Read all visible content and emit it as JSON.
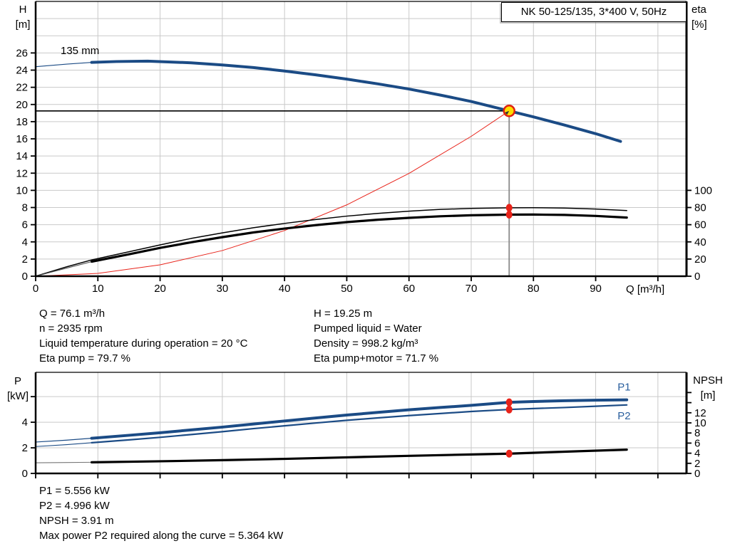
{
  "title_box": {
    "label": "NK 50-125/135, 3*400 V, 50Hz"
  },
  "colors": {
    "curve_blue": "#1b4b85",
    "label_blue": "#2a5f9e",
    "system_red": "#e8231a",
    "dot_red": "#e8231a",
    "op_yellow": "#ffdd00",
    "op_ring_red": "#e02010",
    "grid_gray": "#c9c9c9",
    "duty_line_gray": "#8a8a8a",
    "black": "#000000"
  },
  "info_top": {
    "left": [
      "Q = 76.1 m³/h",
      "n = 2935 rpm",
      "Liquid temperature during operation = 20 °C",
      "Eta pump = 79.7 %"
    ],
    "right": [
      "H = 19.25 m",
      "Pumped liquid = Water",
      "Density = 998.2 kg/m³",
      "Eta pump+motor = 71.7 %"
    ]
  },
  "info_bottom": [
    "P1 = 5.556 kW",
    "P2 = 4.996 kW",
    "NPSH = 3.91 m",
    "Max power P2 required along the curve = 5.364 kW"
  ],
  "chart_data": [
    {
      "type": "line",
      "title": "NK 50-125/135, 3*400 V, 50Hz",
      "curve_label": "135 mm",
      "xlabel": "Q [m³/h]",
      "yleft_title": "H",
      "yleft_unit": "[m]",
      "yright_title": "eta",
      "yright_unit": "[%]",
      "xlim": [
        0,
        104.6
      ],
      "ylim_left": [
        0,
        32
      ],
      "ylim_right": [
        0,
        320
      ],
      "grid_x": [
        10,
        20,
        30,
        40,
        50,
        60,
        70,
        80,
        90,
        100
      ],
      "grid_y_left": [
        2,
        4,
        6,
        8,
        10,
        12,
        14,
        16,
        18,
        20,
        22,
        24,
        26,
        28,
        30
      ],
      "ticks": {
        "x": {
          "values": [
            0,
            10,
            20,
            30,
            40,
            50,
            60,
            70,
            80,
            90,
            100
          ],
          "labels": [
            "0",
            "10",
            "20",
            "30",
            "40",
            "50",
            "60",
            "70",
            "80",
            "90",
            ""
          ]
        },
        "left": {
          "values": [
            0,
            2,
            4,
            6,
            8,
            10,
            12,
            14,
            16,
            18,
            20,
            22,
            24,
            26
          ],
          "labels": [
            "0",
            "2",
            "4",
            "6",
            "8",
            "10",
            "12",
            "14",
            "16",
            "18",
            "20",
            "22",
            "24",
            "26"
          ]
        },
        "right": {
          "values": [
            0,
            20,
            40,
            60,
            80,
            100
          ],
          "labels": [
            "0",
            "20",
            "40",
            "60",
            "80",
            "100"
          ]
        }
      },
      "duty": {
        "q": 76.1,
        "h": 19.25
      },
      "series": [
        {
          "name": "system-curve",
          "axis": "left",
          "color": "#e8231a",
          "width": 1,
          "points": [
            [
              0,
              0
            ],
            [
              10,
              0.33
            ],
            [
              20,
              1.33
            ],
            [
              30,
              2.99
            ],
            [
              40,
              5.32
            ],
            [
              50,
              8.31
            ],
            [
              60,
              11.97
            ],
            [
              70,
              16.29
            ],
            [
              76.1,
              19.25
            ]
          ]
        },
        {
          "name": "eta-pump",
          "axis": "right",
          "color": "#000000",
          "width": 1.5,
          "points": [
            [
              0,
              0
            ],
            [
              5,
              11
            ],
            [
              9,
              19
            ],
            [
              15,
              28.5
            ],
            [
              20,
              36.5
            ],
            [
              25,
              44
            ],
            [
              30,
              50.5
            ],
            [
              35,
              56.5
            ],
            [
              40,
              61.5
            ],
            [
              45,
              66
            ],
            [
              50,
              70
            ],
            [
              55,
              73.2
            ],
            [
              60,
              75.8
            ],
            [
              65,
              77.8
            ],
            [
              70,
              79
            ],
            [
              76.1,
              79.7
            ],
            [
              80,
              79.8
            ],
            [
              85,
              79.4
            ],
            [
              90,
              78.2
            ],
            [
              95,
              76.5
            ]
          ]
        },
        {
          "name": "eta-pump-motor",
          "axis": "right",
          "color": "#000000",
          "width": 3.2,
          "lead_until": 9,
          "lead_width": 1.1,
          "lead_color": "#555555",
          "points": [
            [
              0,
              0
            ],
            [
              5,
              9.5
            ],
            [
              9,
              17
            ],
            [
              15,
              25.5
            ],
            [
              20,
              33
            ],
            [
              25,
              39.5
            ],
            [
              30,
              45.5
            ],
            [
              35,
              51
            ],
            [
              40,
              55.5
            ],
            [
              45,
              59.5
            ],
            [
              50,
              63
            ],
            [
              55,
              65.8
            ],
            [
              60,
              68
            ],
            [
              65,
              69.8
            ],
            [
              70,
              71
            ],
            [
              76.1,
              71.7
            ],
            [
              80,
              71.8
            ],
            [
              85,
              71.4
            ],
            [
              90,
              70.2
            ],
            [
              95,
              68.3
            ]
          ]
        },
        {
          "name": "head-curve",
          "axis": "left",
          "color": "#1b4b85",
          "width": 4,
          "lead_until": 9,
          "lead_width": 1.2,
          "points": [
            [
              0,
              24.4
            ],
            [
              5,
              24.7
            ],
            [
              9,
              24.9
            ],
            [
              13,
              25.0
            ],
            [
              18,
              25.05
            ],
            [
              25,
              24.85
            ],
            [
              30,
              24.6
            ],
            [
              35,
              24.3
            ],
            [
              40,
              23.9
            ],
            [
              45,
              23.45
            ],
            [
              50,
              22.95
            ],
            [
              55,
              22.4
            ],
            [
              60,
              21.8
            ],
            [
              65,
              21.1
            ],
            [
              70,
              20.35
            ],
            [
              76.1,
              19.25
            ],
            [
              80,
              18.55
            ],
            [
              85,
              17.6
            ],
            [
              90,
              16.6
            ],
            [
              94,
              15.7
            ]
          ]
        }
      ],
      "dots": [
        {
          "q": 76.1,
          "v": 79.7,
          "axis": "right"
        },
        {
          "q": 76.1,
          "v": 71.7,
          "axis": "right"
        }
      ]
    },
    {
      "type": "line",
      "title": "Power and NPSH curves",
      "xlabel": "",
      "yleft_title": "P",
      "yleft_unit": "[kW]",
      "yright_title": "NPSH",
      "yright_unit": "[m]",
      "xlim": [
        0,
        104.6
      ],
      "ylim_left": [
        0,
        7.9
      ],
      "ylim_right": [
        0,
        20
      ],
      "grid_x": [
        10,
        20,
        30,
        40,
        50,
        60,
        70,
        80,
        90,
        100
      ],
      "grid_y_left": [
        2,
        4,
        6
      ],
      "ticks": {
        "x": {
          "values": [
            0,
            10,
            20,
            30,
            40,
            50,
            60,
            70,
            80,
            90,
            100
          ],
          "labels": [
            "",
            "",
            "",
            "",
            "",
            "",
            "",
            "",
            "",
            "",
            ""
          ]
        },
        "left": {
          "values": [
            0,
            2,
            4,
            6
          ],
          "labels": [
            "0",
            "2",
            "4",
            ""
          ]
        },
        "right": {
          "values": [
            0,
            2,
            4,
            6,
            8,
            10,
            12,
            14,
            16
          ],
          "labels": [
            "0",
            "2",
            "4",
            "6",
            "8",
            "10",
            "12",
            "",
            ""
          ]
        }
      },
      "series": [
        {
          "name": "p1-curve",
          "axis": "left",
          "color": "#1b4b85",
          "width": 4,
          "lead_until": 9,
          "lead_width": 1.2,
          "end_label": "P1",
          "label_dx": -13,
          "label_dy": -13,
          "points": [
            [
              0,
              2.45
            ],
            [
              5,
              2.6
            ],
            [
              9,
              2.75
            ],
            [
              15,
              2.98
            ],
            [
              20,
              3.18
            ],
            [
              25,
              3.4
            ],
            [
              30,
              3.62
            ],
            [
              35,
              3.86
            ],
            [
              40,
              4.1
            ],
            [
              45,
              4.33
            ],
            [
              50,
              4.56
            ],
            [
              55,
              4.77
            ],
            [
              60,
              4.97
            ],
            [
              65,
              5.15
            ],
            [
              70,
              5.32
            ],
            [
              76.1,
              5.556
            ],
            [
              80,
              5.62
            ],
            [
              85,
              5.68
            ],
            [
              90,
              5.72
            ],
            [
              95,
              5.75
            ]
          ]
        },
        {
          "name": "p2-curve",
          "axis": "left",
          "color": "#1b4b85",
          "width": 2.2,
          "lead_until": 9,
          "lead_width": 1.1,
          "end_label": "P2",
          "label_dx": -13,
          "label_dy": 20,
          "points": [
            [
              0,
              2.1
            ],
            [
              5,
              2.25
            ],
            [
              9,
              2.4
            ],
            [
              15,
              2.62
            ],
            [
              20,
              2.82
            ],
            [
              25,
              3.04
            ],
            [
              30,
              3.26
            ],
            [
              35,
              3.5
            ],
            [
              40,
              3.72
            ],
            [
              45,
              3.94
            ],
            [
              50,
              4.15
            ],
            [
              55,
              4.34
            ],
            [
              60,
              4.52
            ],
            [
              65,
              4.68
            ],
            [
              70,
              4.84
            ],
            [
              76.1,
              4.996
            ],
            [
              80,
              5.07
            ],
            [
              85,
              5.15
            ],
            [
              90,
              5.25
            ],
            [
              95,
              5.35
            ]
          ]
        },
        {
          "name": "npsh-curve",
          "axis": "right",
          "color": "#000000",
          "width": 3.2,
          "lead_until": 9,
          "lead_width": 1.1,
          "lead_color": "#777777",
          "points": [
            [
              0,
              2.1
            ],
            [
              5,
              2.15
            ],
            [
              9,
              2.2
            ],
            [
              20,
              2.4
            ],
            [
              30,
              2.62
            ],
            [
              40,
              2.88
            ],
            [
              50,
              3.18
            ],
            [
              60,
              3.48
            ],
            [
              70,
              3.75
            ],
            [
              76.1,
              3.91
            ],
            [
              85,
              4.3
            ],
            [
              95,
              4.7
            ]
          ]
        }
      ],
      "dots": [
        {
          "q": 76.1,
          "v": 5.556,
          "axis": "left"
        },
        {
          "q": 76.1,
          "v": 4.996,
          "axis": "left"
        },
        {
          "q": 76.1,
          "v": 3.91,
          "axis": "right"
        }
      ]
    }
  ]
}
